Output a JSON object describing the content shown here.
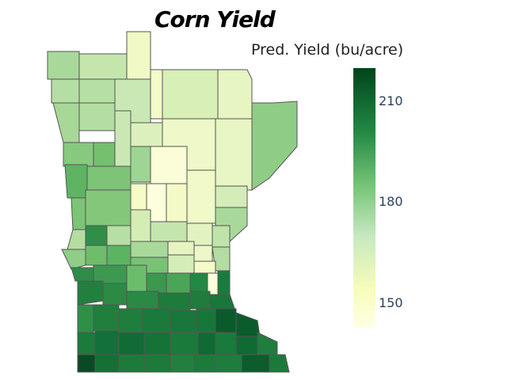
{
  "title": "Corn Yield",
  "legend": {
    "title": "Pred. Yield (bu/acre)",
    "ticks": [
      "210",
      "180",
      "150"
    ],
    "colorscale": [
      "#ffffe5",
      "#f7fcb9",
      "#c7e9c0",
      "#74c476",
      "#238b45",
      "#00441b"
    ]
  },
  "map": {
    "region": "Minnesota",
    "value_range": [
      143,
      221
    ]
  }
}
